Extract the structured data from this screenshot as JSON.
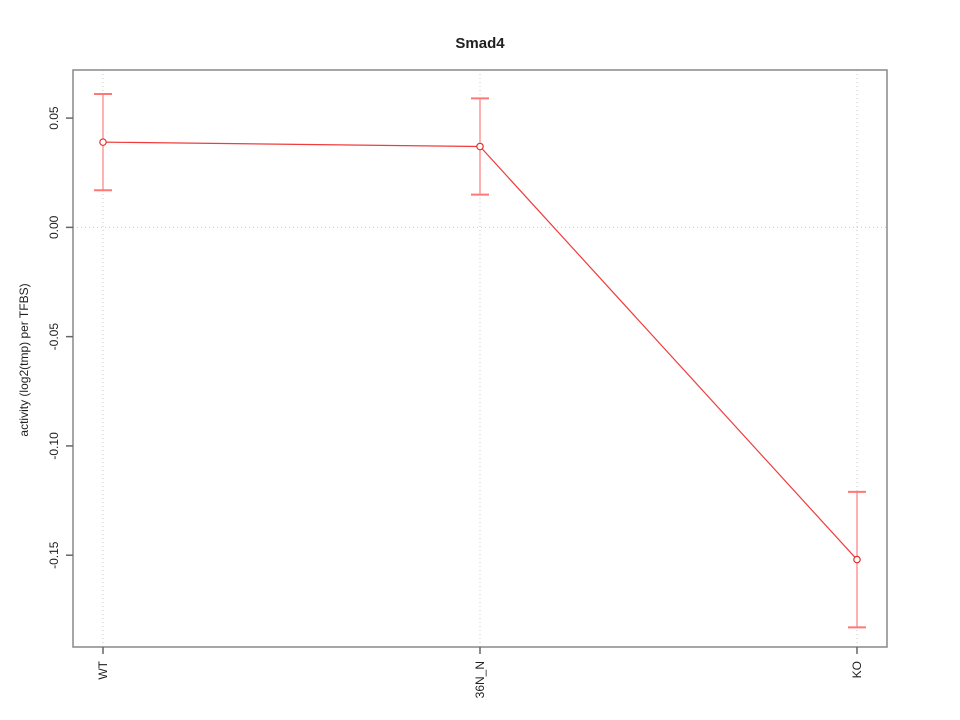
{
  "page": {
    "background": "#ffffff"
  },
  "chart_data": {
    "type": "line",
    "title": "Smad4",
    "xlabel": "",
    "ylabel": "activity (log2(tmp) per TFBS)",
    "categories": [
      "WT",
      "36N_N",
      "KO"
    ],
    "series": [
      {
        "name": "Smad4",
        "values": [
          0.039,
          0.037,
          -0.152
        ],
        "error_upper": [
          0.061,
          0.059,
          -0.121
        ],
        "error_lower": [
          0.017,
          0.015,
          -0.183
        ]
      }
    ],
    "ytick_labels": [
      "0.05",
      "0.00",
      "-0.05",
      "-0.10",
      "-0.15"
    ],
    "ytick_values": [
      0.05,
      0.0,
      -0.05,
      -0.1,
      -0.15
    ],
    "ylim": [
      -0.192,
      0.072
    ],
    "grid": {
      "style": "dotted",
      "vertical_at_categories": true,
      "horizontal_at_zero": true
    },
    "legend": "none",
    "point_style": "open-circle",
    "x_label_rotation": 90,
    "y_label_rotation": 90
  },
  "colors": {
    "series_line": "#f03c3c",
    "error_bar": "#ff9090",
    "error_cap": "#ff7878",
    "point_stroke": "#e03030",
    "point_fill": "#ffffff",
    "grid": "#c8c8c8",
    "axis_box": "#888888",
    "tick": "#666666",
    "text": "#1f1f1f"
  }
}
